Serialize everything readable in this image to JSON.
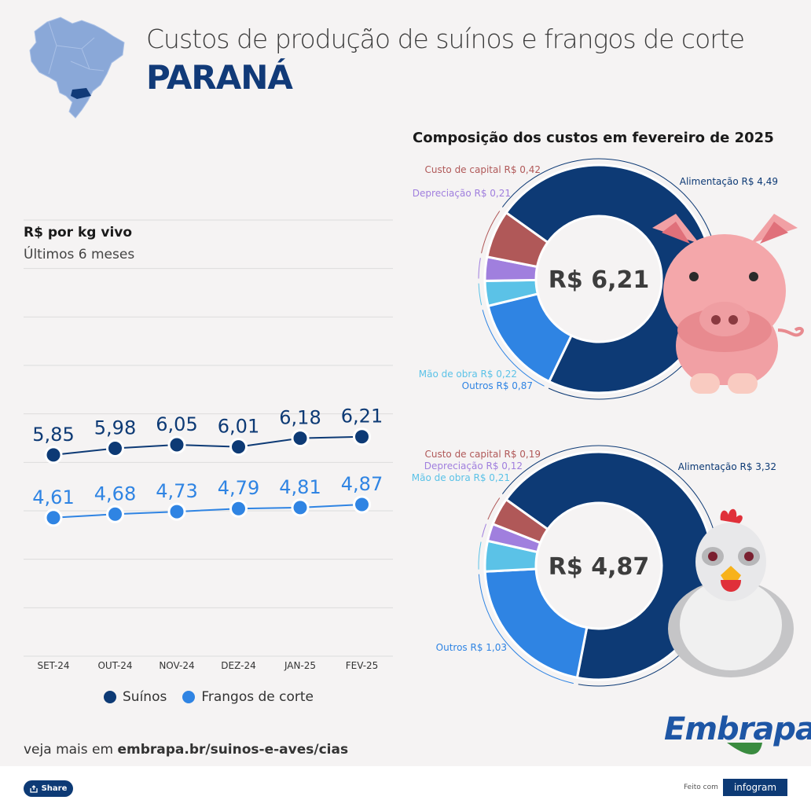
{
  "header": {
    "title": "Custos de produção de suínos e frangos de corte",
    "region": "PARANÁ"
  },
  "colors": {
    "suinos": "#0d3a75",
    "frangos": "#2f84e3",
    "alimentacao": "#0d3a75",
    "outros": "#2f84e3",
    "mao_de_obra": "#5bc2e7",
    "depreciacao": "#a07fde",
    "custo_capital": "#b05858"
  },
  "line_panel": {
    "title": "R$ por kg vivo",
    "subtitle": "Últimos 6 meses"
  },
  "donut_panel": {
    "title": "Composição dos custos em fevereiro de 2025"
  },
  "chart_data": [
    {
      "type": "line",
      "title": "R$ por kg vivo",
      "subtitle": "Últimos 6 meses",
      "categories": [
        "SET-24",
        "OUT-24",
        "NOV-24",
        "DEZ-24",
        "JAN-25",
        "FEV-25"
      ],
      "series": [
        {
          "name": "Suínos",
          "values": [
            5.85,
            5.98,
            6.05,
            6.01,
            6.18,
            6.21
          ],
          "labels": [
            "5,85",
            "5,98",
            "6,05",
            "6,01",
            "6,18",
            "6,21"
          ]
        },
        {
          "name": "Frangos de corte",
          "values": [
            4.61,
            4.68,
            4.73,
            4.79,
            4.81,
            4.87
          ],
          "labels": [
            "4,61",
            "4,68",
            "4,73",
            "4,79",
            "4,81",
            "4,87"
          ]
        }
      ],
      "grid": true,
      "legend": "bottom"
    },
    {
      "type": "pie",
      "center_label": "R$ 6,21",
      "slices": [
        {
          "label": "Alimentação R$ 4,49",
          "value": 4.49,
          "key": "alimentacao"
        },
        {
          "label": "Outros R$ 0,87",
          "value": 0.87,
          "key": "outros"
        },
        {
          "label": "Mão de obra R$ 0,22",
          "value": 0.22,
          "key": "mao_de_obra"
        },
        {
          "label": "Depreciação R$ 0,21",
          "value": 0.21,
          "key": "depreciacao"
        },
        {
          "label": "Custo de capital R$ 0,42",
          "value": 0.42,
          "key": "custo_capital"
        }
      ]
    },
    {
      "type": "pie",
      "center_label": "R$ 4,87",
      "slices": [
        {
          "label": "Alimentação R$ 3,32",
          "value": 3.32,
          "key": "alimentacao"
        },
        {
          "label": "Outros R$ 1,03",
          "value": 1.03,
          "key": "outros"
        },
        {
          "label": "Mão de obra R$ 0,21",
          "value": 0.21,
          "key": "mao_de_obra"
        },
        {
          "label": "Depreciação R$ 0,12",
          "value": 0.12,
          "key": "depreciacao"
        },
        {
          "label": "Custo de capital R$ 0,19",
          "value": 0.19,
          "key": "custo_capital"
        }
      ]
    }
  ],
  "footer": {
    "see_more_prefix": "veja mais em ",
    "see_more_link": "embrapa.br/suinos-e-aves/cias",
    "share": "Share",
    "made_with": "Feito com",
    "infogram": "infogram",
    "logo": "Embrapa"
  },
  "icons": [
    "brazil-map-icon",
    "pig-icon",
    "chicken-icon",
    "share-icon"
  ]
}
